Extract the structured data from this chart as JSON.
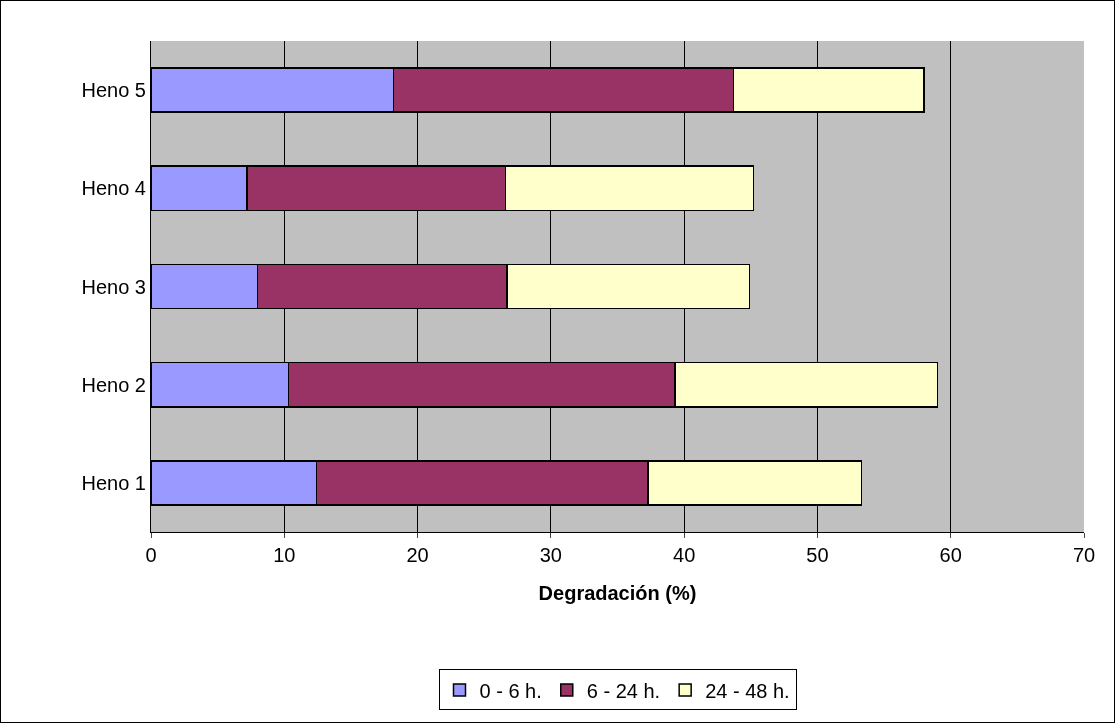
{
  "chart_data": {
    "type": "bar",
    "orientation": "horizontal",
    "stacked": true,
    "xlabel": "Degradación (%)",
    "categories": [
      "Heno 5",
      "Heno 4",
      "Heno 3",
      "Heno 2",
      "Heno 1"
    ],
    "series": [
      {
        "name": "0 - 6 h.",
        "color": "#9999ff",
        "values": [
          18.2,
          7.2,
          8.0,
          10.3,
          12.4
        ]
      },
      {
        "name": "6 - 24 h.",
        "color": "#993366",
        "values": [
          25.5,
          19.4,
          18.7,
          29.0,
          24.9
        ]
      },
      {
        "name": "24 - 48 h.",
        "color": "#ffffcc",
        "values": [
          14.3,
          18.6,
          18.2,
          19.7,
          16.0
        ]
      }
    ],
    "xlim": [
      0,
      70
    ],
    "xticks": [
      0,
      10,
      20,
      30,
      40,
      50,
      60,
      70
    ],
    "grid": "x",
    "legend": "bottom"
  }
}
